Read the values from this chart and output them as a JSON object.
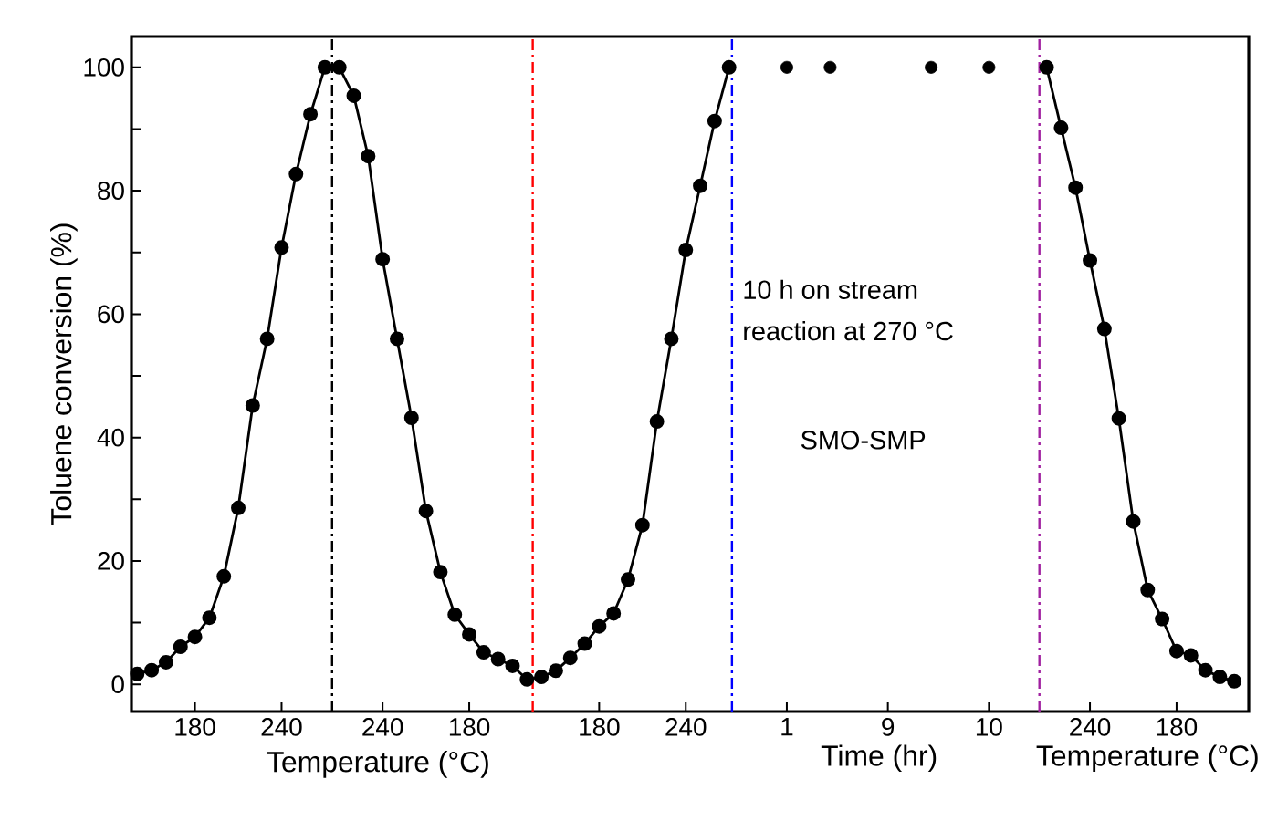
{
  "chart_data": {
    "type": "line",
    "xlabel": "Temperature (°C)",
    "ylabel": "Toluene conversion (%)",
    "categories": [
      null,
      null,
      null,
      null,
      "180",
      null,
      null,
      null,
      null,
      null,
      "240",
      null,
      null,
      null,
      null,
      null,
      null,
      "240",
      null,
      null,
      null,
      null,
      null,
      "180",
      null,
      null,
      null,
      null,
      null,
      null,
      null,
      null,
      "180",
      null,
      null,
      null,
      null,
      null,
      "240",
      null,
      null,
      null,
      null,
      null,
      null,
      "1",
      null,
      null,
      null,
      null,
      null,
      null,
      "9",
      null,
      null,
      null,
      null,
      null,
      null,
      "10",
      null,
      null,
      null,
      null,
      null,
      null,
      "240",
      null,
      null,
      null,
      null,
      null,
      "180",
      null,
      null,
      null,
      null,
      null
    ],
    "ylim": [
      -4.4,
      105
    ],
    "yticks": [
      0,
      {
        "value": 10,
        "label": null
      },
      20,
      {
        "value": 30,
        "label": null
      },
      40,
      {
        "value": 50,
        "label": null
      },
      60,
      {
        "value": 70,
        "label": null
      },
      80,
      {
        "value": 90,
        "label": null
      },
      100
    ],
    "marker": "circle",
    "series": [
      {
        "color": "#000000",
        "values": [
          1.7,
          2.3,
          3.6,
          6.1,
          7.7,
          10.8,
          17.5,
          28.6,
          45.2,
          56.0,
          70.8,
          82.7,
          92.4,
          100,
          100,
          95.4,
          85.6,
          68.9,
          56.0,
          43.2,
          28.1,
          18.2,
          11.3,
          8.1,
          5.2,
          4.1,
          3.0,
          0.8,
          1.2,
          2.2,
          4.3,
          6.6,
          9.4,
          11.5,
          17.0,
          25.8,
          42.6,
          56.0,
          70.4,
          80.8,
          91.3,
          100,
          null,
          null,
          null,
          null,
          null,
          null,
          null,
          null,
          null,
          null,
          null,
          null,
          null,
          null,
          null,
          null,
          null,
          null,
          null,
          null,
          null,
          null,
          null,
          null,
          null,
          null,
          null,
          null,
          null,
          null,
          null,
          null,
          null,
          null,
          null,
          null
        ]
      },
      {
        "type": "scatter",
        "color": "#000000",
        "values": [
          null,
          null,
          null,
          null,
          null,
          null,
          null,
          null,
          null,
          null,
          null,
          null,
          null,
          null,
          null,
          null,
          null,
          null,
          null,
          null,
          null,
          null,
          null,
          null,
          null,
          null,
          null,
          null,
          null,
          null,
          null,
          null,
          null,
          null,
          null,
          null,
          null,
          null,
          null,
          null,
          null,
          null,
          null,
          null,
          null,
          100,
          null,
          null,
          100,
          null,
          null,
          null,
          null,
          null,
          null,
          100,
          null,
          null,
          null,
          100,
          null,
          null,
          null,
          null,
          null,
          null,
          null,
          null,
          null,
          null,
          null,
          null,
          null,
          null,
          null,
          null,
          null,
          null
        ]
      },
      {
        "color": "#000000",
        "values": [
          null,
          null,
          null,
          null,
          null,
          null,
          null,
          null,
          null,
          null,
          null,
          null,
          null,
          null,
          null,
          null,
          null,
          null,
          null,
          null,
          null,
          null,
          null,
          null,
          null,
          null,
          null,
          null,
          null,
          null,
          null,
          null,
          null,
          null,
          null,
          null,
          null,
          null,
          null,
          null,
          null,
          null,
          null,
          null,
          null,
          null,
          null,
          null,
          null,
          null,
          null,
          null,
          null,
          null,
          null,
          null,
          null,
          null,
          null,
          null,
          null,
          null,
          null,
          100,
          90.2,
          80.5,
          68.7,
          57.6,
          43.1,
          26.4,
          15.3,
          10.6,
          5.4,
          4.7,
          2.3,
          1.2,
          0.5,
          null
        ]
      }
    ],
    "annotations": [
      "10 h on stream",
      "reaction at 270 °C",
      "SMO-SMP",
      "Time (hr)",
      "Temperature (°C)"
    ]
  }
}
